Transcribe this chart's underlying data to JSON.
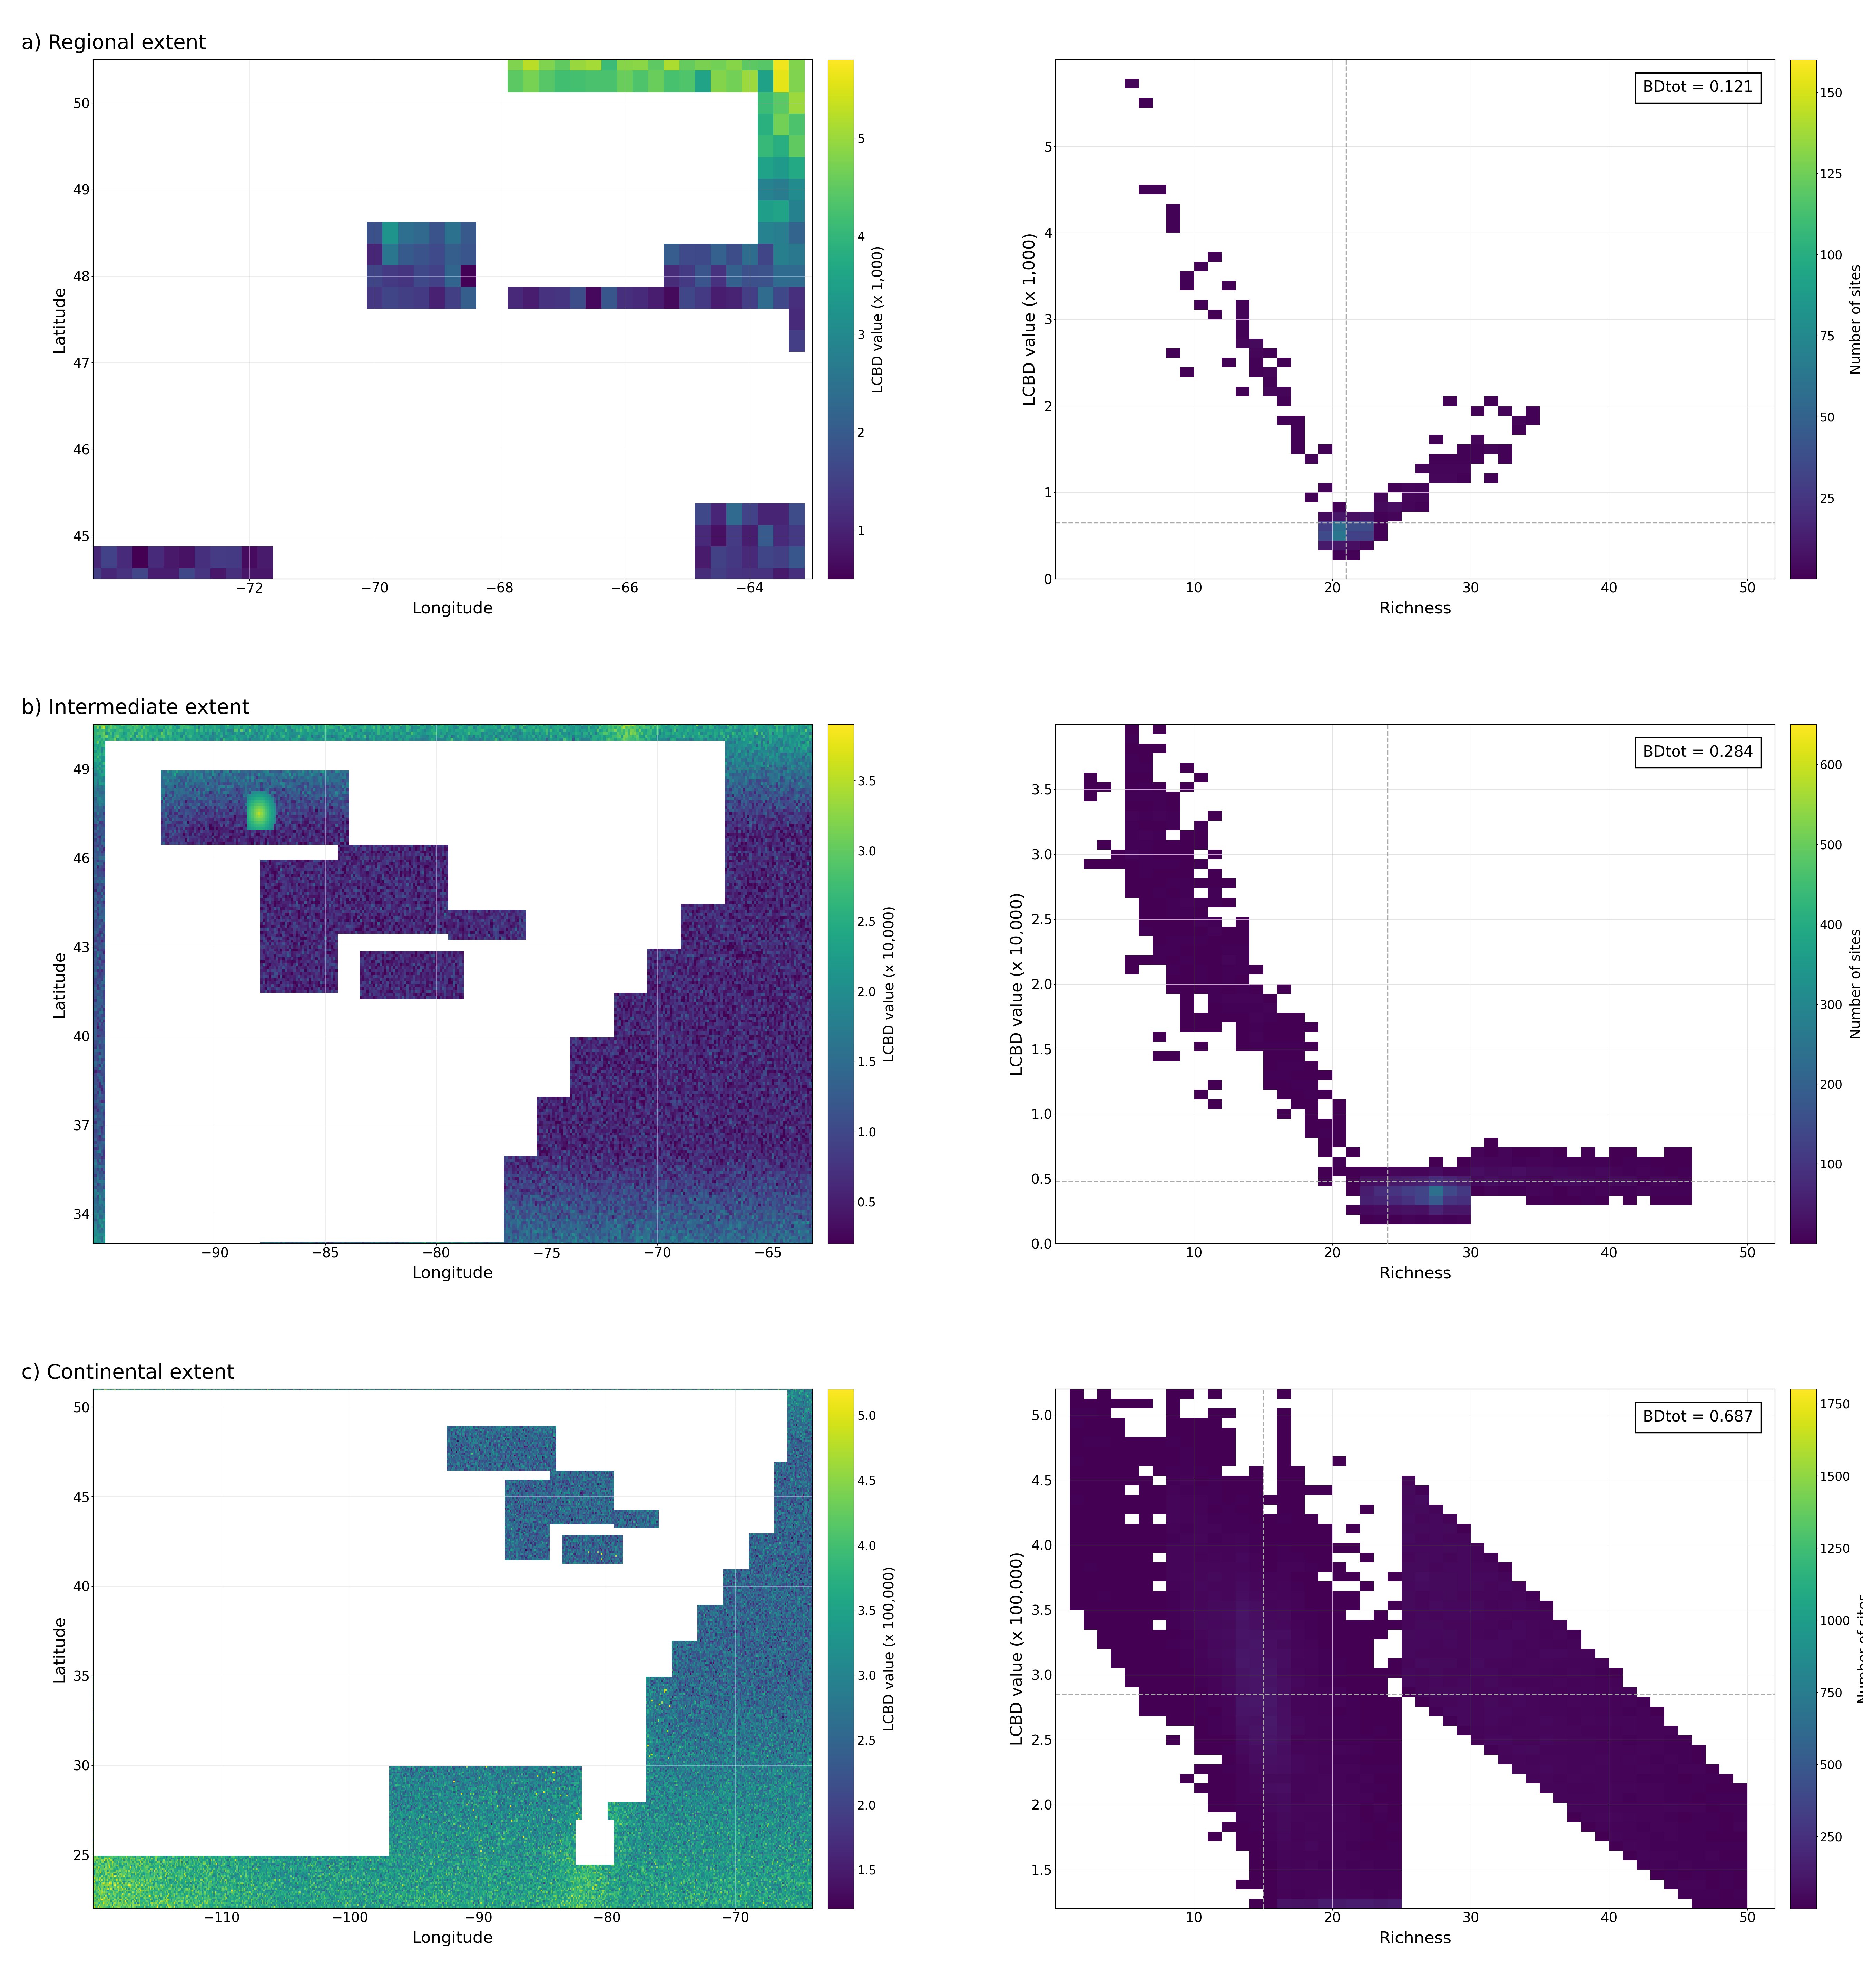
{
  "panels": [
    {
      "label": "a) Regional extent",
      "map": {
        "lon_range": [
          -74.5,
          -63.0
        ],
        "lat_range": [
          44.5,
          50.5
        ],
        "lon_ticks": [
          -72,
          -70,
          -68,
          -66,
          -64
        ],
        "lat_ticks": [
          45,
          46,
          47,
          48,
          49,
          50
        ],
        "cbar_label": "LCBD value (x 1,000)",
        "cbar_ticks": [
          1,
          2,
          3,
          4,
          5
        ],
        "vmin": 0.5,
        "vmax": 5.8,
        "grid_res": 0.25
      },
      "scatter": {
        "bdtot": "0.121",
        "xlabel": "Richness",
        "ylabel": "LCBD value (x 1,000)",
        "xlim": [
          0,
          52
        ],
        "ylim": [
          0,
          6.0
        ],
        "xticks": [
          10,
          20,
          30,
          40,
          50
        ],
        "yticks": [
          0,
          1,
          2,
          3,
          4,
          5
        ],
        "median_richness": 21,
        "median_lcbd": 0.65,
        "cbar_max": 160,
        "cbar_ticks": [
          25,
          50,
          75,
          100,
          125,
          150
        ],
        "seed": 101
      }
    },
    {
      "label": "b) Intermediate extent",
      "map": {
        "lon_range": [
          -95.5,
          -63.0
        ],
        "lat_range": [
          33.0,
          50.5
        ],
        "lon_ticks": [
          -90,
          -85,
          -80,
          -75,
          -70,
          -65
        ],
        "lat_ticks": [
          34,
          37,
          40,
          43,
          46,
          49
        ],
        "cbar_label": "LCBD value (x 10,000)",
        "cbar_ticks": [
          0.5,
          1.0,
          1.5,
          2.0,
          2.5,
          3.0,
          3.5
        ],
        "vmin": 0.2,
        "vmax": 3.9,
        "grid_res": 0.1
      },
      "scatter": {
        "bdtot": "0.284",
        "xlabel": "Richness",
        "ylabel": "LCBD value (x 10,000)",
        "xlim": [
          0,
          52
        ],
        "ylim": [
          0,
          4.0
        ],
        "xticks": [
          10,
          20,
          30,
          40,
          50
        ],
        "yticks": [
          0,
          0.5,
          1.0,
          1.5,
          2.0,
          2.5,
          3.0,
          3.5
        ],
        "median_richness": 24,
        "median_lcbd": 0.48,
        "cbar_max": 650,
        "cbar_ticks": [
          100,
          200,
          300,
          400,
          500,
          600
        ],
        "seed": 201
      }
    },
    {
      "label": "c) Continental extent",
      "map": {
        "lon_range": [
          -120.0,
          -64.0
        ],
        "lat_range": [
          22.0,
          51.0
        ],
        "lon_ticks": [
          -110,
          -100,
          -90,
          -80,
          -70
        ],
        "lat_ticks": [
          25,
          30,
          35,
          40,
          45,
          50
        ],
        "cbar_label": "LCBD value (x 100,000)",
        "cbar_ticks": [
          1.5,
          2.0,
          2.5,
          3.0,
          3.5,
          4.0,
          4.5,
          5.0
        ],
        "vmin": 1.2,
        "vmax": 5.2,
        "grid_res": 0.1
      },
      "scatter": {
        "bdtot": "0.687",
        "xlabel": "Richness",
        "ylabel": "LCBD value (x 100,000)",
        "xlim": [
          0,
          52
        ],
        "ylim": [
          1.2,
          5.2
        ],
        "xticks": [
          10,
          20,
          30,
          40,
          50
        ],
        "yticks": [
          1.5,
          2.0,
          2.5,
          3.0,
          3.5,
          4.0,
          4.5,
          5.0
        ],
        "median_richness": 15,
        "median_lcbd": 2.85,
        "cbar_max": 1800,
        "cbar_ticks": [
          250,
          500,
          750,
          1000,
          1250,
          1500,
          1750
        ],
        "seed": 301
      }
    }
  ],
  "map_cmap": "viridis",
  "scatter_cmap_colors": [
    "#08083a",
    "#0d1b6e",
    "#1a3480",
    "#2952a0",
    "#4070b8",
    "#6090cc",
    "#90b8de",
    "#c8d8ee",
    "#e8e090",
    "#f8e020",
    "#ffff00"
  ],
  "background_color": "white",
  "grid_color": "#cccccc",
  "dashed_line_color": "#aaaaaa"
}
